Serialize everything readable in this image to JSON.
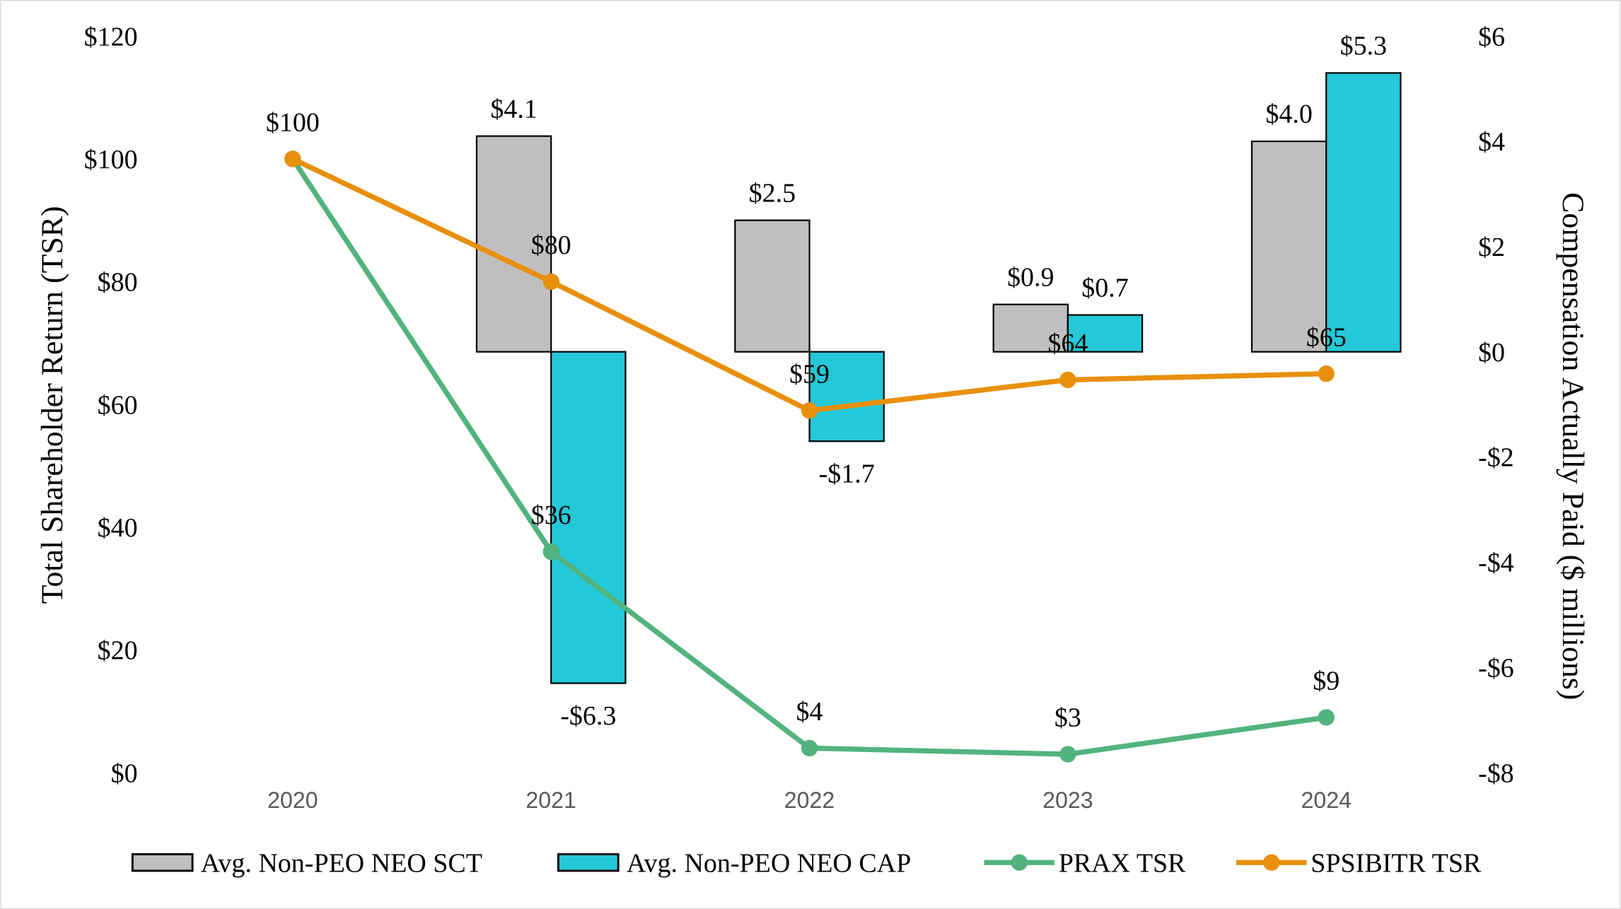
{
  "chart_data": {
    "type": "bar",
    "categories": [
      "2020",
      "2021",
      "2022",
      "2023",
      "2024"
    ],
    "left_axis": {
      "label": "Total Shareholder Return (TSR)",
      "range": [
        0,
        120
      ],
      "ticks": [
        0,
        20,
        40,
        60,
        80,
        100,
        120
      ],
      "tick_labels": [
        "$0",
        "$20",
        "$40",
        "$60",
        "$80",
        "$100",
        "$120"
      ]
    },
    "right_axis": {
      "label": "Compensation Actually Paid ($ millions)",
      "range": [
        -8,
        6
      ],
      "ticks": [
        -8,
        -6,
        -4,
        -2,
        0,
        2,
        4,
        6
      ],
      "tick_labels": [
        "-$8",
        "-$6",
        "-$4",
        "-$2",
        "$0",
        "$2",
        "$4",
        "$6"
      ]
    },
    "bar_series": [
      {
        "name": "Avg. Non-PEO NEO SCT",
        "color": "#bfbfbf",
        "axis": "right",
        "values": [
          null,
          4.1,
          2.5,
          0.9,
          4.0
        ],
        "labels": [
          null,
          "$4.1",
          "$2.5",
          "$0.9",
          "$4.0"
        ]
      },
      {
        "name": "Avg. Non-PEO NEO CAP",
        "color": "#24c8d8",
        "axis": "right",
        "values": [
          null,
          -6.3,
          -1.7,
          0.7,
          5.3
        ],
        "labels": [
          null,
          "-$6.3",
          "-$1.7",
          "$0.7",
          "$5.3"
        ]
      }
    ],
    "line_series": [
      {
        "name": "PRAX TSR",
        "color": "#52b37e",
        "axis": "left",
        "values": [
          100,
          36,
          4,
          3,
          9
        ],
        "labels": [
          "",
          "$36",
          "$4",
          "$3",
          "$9"
        ]
      },
      {
        "name": "SPSIBITR TSR",
        "color": "#e8900c",
        "axis": "left",
        "values": [
          100,
          80,
          59,
          64,
          65
        ],
        "labels": [
          "$100",
          "$80",
          "$59",
          "$64",
          "$65"
        ]
      }
    ],
    "legend": "bottom",
    "grid": false
  }
}
